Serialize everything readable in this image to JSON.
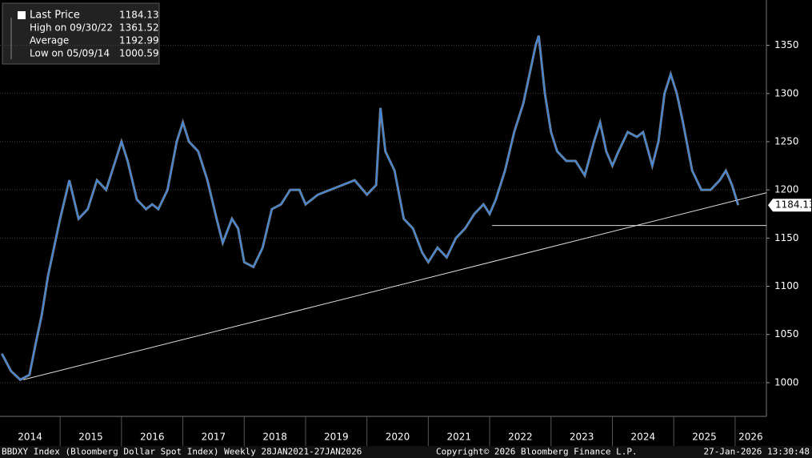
{
  "chart_data": {
    "type": "line",
    "legend_items": [
      {
        "label": "Last Price",
        "value": 1184.13
      },
      {
        "label": "High on 09/30/22",
        "value": 1361.52
      },
      {
        "label": "Average",
        "value": 1192.99
      },
      {
        "label": "Low on 05/09/14",
        "value": 1000.59
      }
    ],
    "series": [
      {
        "name": "Last Price",
        "color": "#3a86e0",
        "x": [
          2014.05,
          2014.2,
          2014.35,
          2014.5,
          2014.6,
          2014.7,
          2014.8,
          2014.9,
          2015.0,
          2015.15,
          2015.3,
          2015.45,
          2015.6,
          2015.75,
          2015.9,
          2016.0,
          2016.1,
          2016.25,
          2016.4,
          2016.5,
          2016.6,
          2016.75,
          2016.9,
          2017.0,
          2017.1,
          2017.25,
          2017.4,
          2017.55,
          2017.65,
          2017.8,
          2017.9,
          2018.0,
          2018.15,
          2018.3,
          2018.45,
          2018.6,
          2018.75,
          2018.9,
          2019.0,
          2019.2,
          2019.4,
          2019.6,
          2019.8,
          2020.0,
          2020.15,
          2020.22,
          2020.3,
          2020.45,
          2020.6,
          2020.75,
          2020.9,
          2021.0,
          2021.15,
          2021.3,
          2021.45,
          2021.6,
          2021.75,
          2021.9,
          2022.0,
          2022.1,
          2022.25,
          2022.4,
          2022.55,
          2022.65,
          2022.75,
          2022.8,
          2022.9,
          2023.0,
          2023.1,
          2023.25,
          2023.4,
          2023.55,
          2023.7,
          2023.8,
          2023.9,
          2024.0,
          2024.1,
          2024.25,
          2024.4,
          2024.5,
          2024.65,
          2024.75,
          2024.85,
          2024.95,
          2025.05,
          2025.15,
          2025.3,
          2025.45,
          2025.6,
          2025.75,
          2025.85,
          2025.95,
          2026.05
        ],
        "values": [
          1030,
          1012,
          1003,
          1008,
          1040,
          1070,
          1110,
          1140,
          1170,
          1210,
          1170,
          1180,
          1210,
          1200,
          1230,
          1250,
          1230,
          1190,
          1180,
          1185,
          1180,
          1200,
          1250,
          1270,
          1250,
          1240,
          1210,
          1170,
          1145,
          1170,
          1160,
          1125,
          1120,
          1140,
          1180,
          1185,
          1200,
          1200,
          1185,
          1195,
          1200,
          1205,
          1210,
          1195,
          1205,
          1285,
          1240,
          1220,
          1170,
          1160,
          1135,
          1125,
          1140,
          1130,
          1150,
          1160,
          1175,
          1185,
          1175,
          1190,
          1220,
          1260,
          1290,
          1320,
          1350,
          1360,
          1300,
          1260,
          1240,
          1230,
          1230,
          1215,
          1250,
          1270,
          1240,
          1225,
          1240,
          1260,
          1255,
          1260,
          1225,
          1250,
          1300,
          1320,
          1300,
          1270,
          1220,
          1200,
          1200,
          1210,
          1220,
          1205,
          1184.13
        ]
      }
    ],
    "annotation_lines": [
      {
        "x": [
          2014.4,
          2026.51
        ],
        "values": [
          1003,
          1197
        ]
      },
      {
        "x": [
          2022.04,
          2026.51
        ],
        "values": [
          1163,
          1163
        ]
      }
    ],
    "xlim": [
      2014.02,
      2026.51
    ],
    "xticks": [
      2014,
      2015,
      2016,
      2017,
      2018,
      2019,
      2020,
      2021,
      2022,
      2023,
      2024,
      2025,
      2026
    ],
    "ylim": [
      965,
      1397
    ],
    "yticks": [
      1000,
      1050,
      1100,
      1150,
      1200,
      1250,
      1300,
      1350
    ],
    "grid": true,
    "footer": [
      "BBDXY Index (Bloomberg Dollar Spot Index) Weekly 28JAN2021-27JAN2026",
      "Copyright© 2026 Bloomberg Finance L.P.",
      "27-Jan-2026 13:30:48"
    ]
  }
}
